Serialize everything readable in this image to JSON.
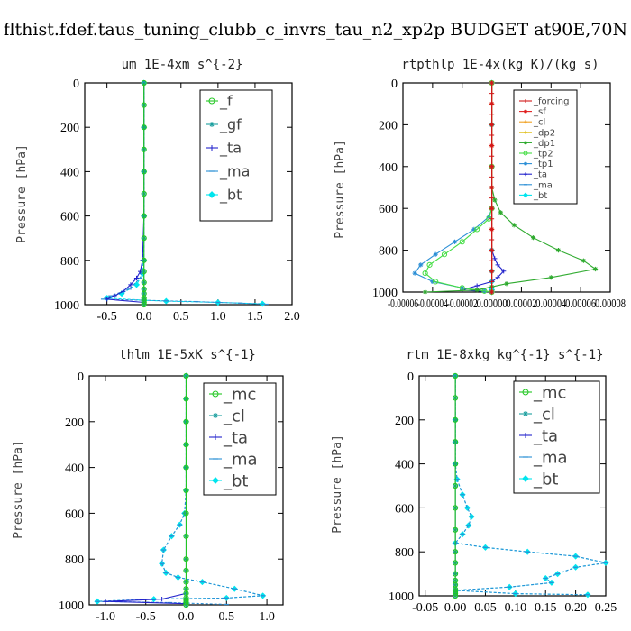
{
  "title": "flthist.fdef.taus_tuning_clubb_c_invrs_tau_n2_xp2p  BUDGET at90E,70N",
  "chart_data": [
    {
      "type": "line",
      "title": "um   1E-4xm s^{-2}",
      "ylabel": "Pressure [hPa]",
      "xlim": [
        -0.8,
        2.0
      ],
      "ylim": [
        1000,
        0
      ],
      "xticks": [
        "-0.5",
        "0.0",
        "0.5",
        "1.0",
        "1.5",
        "2.0"
      ],
      "xtick_values": [
        -0.5,
        0.0,
        0.5,
        1.0,
        1.5,
        2.0
      ],
      "yticks": [
        "0",
        "200",
        "400",
        "600",
        "800",
        "1000"
      ],
      "ytick_values": [
        0,
        200,
        400,
        600,
        800,
        1000
      ],
      "legend_position": "top-right",
      "series": [
        {
          "name": "_f",
          "color": "#22c722",
          "marker": "circle",
          "x": [
            0,
            0,
            0,
            0,
            0,
            0,
            0,
            0,
            0,
            0,
            0,
            0,
            0,
            0,
            0,
            0,
            0
          ],
          "y": [
            0,
            100,
            200,
            300,
            400,
            500,
            600,
            700,
            800,
            850,
            900,
            930,
            950,
            970,
            980,
            990,
            1000
          ]
        },
        {
          "name": "_gf",
          "color": "#1a9e9e",
          "marker": "star",
          "x": [
            0,
            0,
            0,
            0,
            0,
            0,
            0,
            0,
            0,
            0,
            0,
            0,
            0,
            0,
            0,
            0,
            0
          ],
          "y": [
            0,
            100,
            200,
            300,
            400,
            500,
            600,
            700,
            800,
            850,
            900,
            930,
            950,
            970,
            980,
            990,
            1000
          ]
        },
        {
          "name": "_ta",
          "color": "#2222cc",
          "marker": "plus",
          "x": [
            0,
            0,
            0,
            0,
            -0.02,
            -0.05,
            -0.1,
            -0.18,
            -0.28,
            -0.4,
            -0.5,
            0.0
          ],
          "y": [
            0,
            200,
            400,
            600,
            800,
            850,
            880,
            910,
            940,
            960,
            975,
            990
          ]
        },
        {
          "name": "_ma",
          "color": "#2b8fd6",
          "marker": "dash",
          "x": [
            0,
            0,
            0,
            0,
            -0.01,
            -0.05,
            -0.2,
            -0.45,
            -0.55,
            0.0,
            0.3,
            0.7,
            1.0,
            1.3,
            1.65
          ],
          "y": [
            0,
            200,
            400,
            600,
            800,
            880,
            930,
            960,
            975,
            980,
            983,
            986,
            990,
            993,
            998
          ]
        },
        {
          "name": "_bt",
          "color": "#00e5ee",
          "marker": "diamond",
          "x": [
            0,
            0,
            0,
            0,
            0,
            -0.02,
            -0.1,
            -0.3,
            -0.5,
            0.0,
            0.3,
            1.0,
            1.6
          ],
          "y": [
            0,
            200,
            400,
            600,
            800,
            860,
            910,
            950,
            970,
            980,
            984,
            990,
            996
          ]
        }
      ]
    },
    {
      "type": "line",
      "title": "rtpthlp   1E-4x(kg K)/(kg s)",
      "ylabel": "Pressure [hPa]",
      "xlim": [
        -6e-05,
        8e-05
      ],
      "ylim": [
        1000,
        0
      ],
      "xticks": [
        "-0.00006",
        "-0.00004",
        "-0.00002",
        "0.00000",
        "0.00002",
        "0.00004",
        "0.00006",
        "0.00008"
      ],
      "xtick_values": [
        -6e-05,
        -4e-05,
        -2e-05,
        0.0,
        2e-05,
        4e-05,
        6e-05,
        8e-05
      ],
      "yticks": [
        "0",
        "200",
        "400",
        "600",
        "800",
        "1000"
      ],
      "ytick_values": [
        0,
        200,
        400,
        600,
        800,
        1000
      ],
      "legend_position": "top-right",
      "series": [
        {
          "name": "_forcing",
          "color": "#d01818",
          "marker": "plus",
          "x": [
            0,
            0,
            0,
            0,
            0,
            0,
            0,
            0,
            0,
            0,
            0,
            0,
            0,
            0,
            0,
            0,
            0,
            0,
            0,
            0,
            0,
            0
          ],
          "y": [
            0,
            50,
            100,
            150,
            200,
            250,
            300,
            350,
            400,
            450,
            500,
            550,
            600,
            650,
            700,
            750,
            800,
            850,
            900,
            950,
            980,
            1000
          ]
        },
        {
          "name": "_sf",
          "color": "#e02020",
          "marker": "star",
          "x": [
            0,
            0,
            0,
            0,
            0,
            0,
            0,
            0,
            0,
            0,
            0
          ],
          "y": [
            0,
            100,
            200,
            300,
            400,
            500,
            600,
            700,
            800,
            900,
            1000
          ]
        },
        {
          "name": "_cl",
          "color": "#f0a020",
          "marker": "plus",
          "x": [
            0,
            0,
            0,
            0,
            0,
            0,
            0,
            0,
            0,
            0,
            0
          ],
          "y": [
            0,
            100,
            200,
            300,
            400,
            500,
            600,
            700,
            800,
            900,
            1000
          ]
        },
        {
          "name": "_dp2",
          "color": "#e0c020",
          "marker": "plus",
          "x": [
            0,
            0,
            0,
            0,
            0,
            0,
            0,
            0,
            0,
            0,
            0
          ],
          "y": [
            0,
            100,
            200,
            300,
            400,
            500,
            600,
            700,
            800,
            900,
            1000
          ]
        },
        {
          "name": "_dp1",
          "color": "#2eaa2e",
          "marker": "star",
          "x": [
            0,
            0,
            0,
            0,
            2e-06,
            6e-06,
            1.5e-05,
            2.8e-05,
            4.5e-05,
            6.2e-05,
            7e-05,
            4e-05,
            1e-05,
            0,
            -1e-05,
            -4.5e-05
          ],
          "y": [
            0,
            200,
            400,
            500,
            560,
            620,
            680,
            740,
            800,
            850,
            890,
            930,
            960,
            975,
            990,
            1000
          ]
        },
        {
          "name": "_tp2",
          "color": "#44dd44",
          "marker": "circle",
          "x": [
            0,
            0,
            0,
            -2e-06,
            -1e-05,
            -2e-05,
            -3.2e-05,
            -4.2e-05,
            -4.5e-05,
            -3.8e-05,
            -2e-05,
            -5e-06,
            0
          ],
          "y": [
            0,
            400,
            600,
            650,
            700,
            760,
            820,
            870,
            910,
            950,
            980,
            995,
            1000
          ]
        },
        {
          "name": "_tp1",
          "color": "#2b8fd6",
          "marker": "star",
          "x": [
            0,
            0,
            0,
            -2e-06,
            -1.2e-05,
            -2.5e-05,
            -3.8e-05,
            -4.8e-05,
            -5.2e-05,
            -4e-05,
            -2e-05,
            -5e-06,
            0
          ],
          "y": [
            0,
            400,
            600,
            640,
            700,
            760,
            820,
            870,
            910,
            950,
            980,
            995,
            1000
          ]
        },
        {
          "name": "_ta",
          "color": "#2222cc",
          "marker": "plus",
          "x": [
            0,
            0,
            0,
            2e-06,
            4e-06,
            8e-06,
            4e-06,
            0,
            -1e-05,
            -2e-05,
            0
          ],
          "y": [
            0,
            600,
            800,
            840,
            870,
            900,
            930,
            950,
            970,
            990,
            1000
          ]
        },
        {
          "name": "_ma",
          "color": "#2b8fd6",
          "marker": "dash",
          "x": [
            0,
            0,
            0,
            0,
            0,
            0,
            0,
            0,
            0,
            0
          ],
          "y": [
            0,
            200,
            400,
            600,
            800,
            900,
            950,
            980,
            990,
            1000
          ]
        },
        {
          "name": "_bt",
          "color": "#00e5ee",
          "marker": "diamond",
          "x": [
            0,
            0,
            0,
            0,
            0,
            0,
            0,
            0,
            0,
            0
          ],
          "y": [
            0,
            200,
            400,
            600,
            800,
            900,
            950,
            980,
            990,
            1000
          ]
        }
      ]
    },
    {
      "type": "line",
      "title": "thlm   1E-5xK s^{-1}",
      "ylabel": "Pressure [hPa]",
      "xlim": [
        -1.2,
        1.2
      ],
      "ylim": [
        1000,
        0
      ],
      "xticks": [
        "-1.0",
        "-0.5",
        "0.0",
        "0.5",
        "1.0"
      ],
      "xtick_values": [
        -1.0,
        -0.5,
        0.0,
        0.5,
        1.0
      ],
      "yticks": [
        "0",
        "200",
        "400",
        "600",
        "800",
        "1000"
      ],
      "ytick_values": [
        0,
        200,
        400,
        600,
        800,
        1000
      ],
      "legend_position": "top-right",
      "series": [
        {
          "name": "_mc",
          "color": "#22c722",
          "marker": "circle",
          "x": [
            0,
            0,
            0,
            0,
            0,
            0,
            0,
            0,
            0,
            0,
            0,
            0,
            0,
            0,
            0,
            0,
            0
          ],
          "y": [
            0,
            100,
            200,
            300,
            400,
            500,
            600,
            700,
            800,
            850,
            900,
            930,
            950,
            970,
            980,
            990,
            1000
          ]
        },
        {
          "name": "_cl",
          "color": "#1a9e9e",
          "marker": "star",
          "x": [
            0,
            0,
            0,
            0,
            0,
            0,
            0,
            0,
            0,
            0,
            0,
            0,
            0,
            0,
            0,
            0,
            0
          ],
          "y": [
            0,
            100,
            200,
            300,
            400,
            500,
            600,
            700,
            800,
            850,
            900,
            930,
            950,
            970,
            980,
            990,
            1000
          ]
        },
        {
          "name": "_ta",
          "color": "#2222cc",
          "marker": "plus",
          "x": [
            0,
            0,
            0,
            0,
            -0.3,
            -1.0,
            0.0
          ],
          "y": [
            0,
            400,
            800,
            950,
            975,
            985,
            995
          ]
        },
        {
          "name": "_ma",
          "color": "#2b8fd6",
          "marker": "dash",
          "x": [
            0,
            0,
            0,
            0,
            0,
            0,
            -0.02,
            -0.08,
            -0.18,
            -0.28,
            -0.3,
            -0.25,
            -0.1,
            0.2,
            0.6,
            0.95,
            0.5,
            -0.4,
            -1.1,
            -0.2,
            0.5
          ],
          "y": [
            0,
            100,
            200,
            300,
            400,
            500,
            600,
            650,
            700,
            760,
            820,
            860,
            880,
            900,
            930,
            960,
            970,
            975,
            985,
            990,
            998
          ]
        },
        {
          "name": "_bt",
          "color": "#00e5ee",
          "marker": "diamond",
          "x": [
            0,
            0,
            0,
            0,
            0,
            0,
            -0.02,
            -0.08,
            -0.18,
            -0.28,
            -0.3,
            -0.25,
            -0.1,
            0.2,
            0.6,
            0.95,
            0.5,
            -0.4,
            -1.1
          ],
          "y": [
            0,
            100,
            200,
            300,
            400,
            500,
            600,
            650,
            700,
            760,
            820,
            860,
            880,
            900,
            930,
            960,
            970,
            975,
            985
          ]
        }
      ]
    },
    {
      "type": "line",
      "title": "rtm   1E-8xkg kg^{-1} s^{-1}",
      "ylabel": "Pressure [hPa]",
      "xlim": [
        -0.06,
        0.25
      ],
      "ylim": [
        1000,
        0
      ],
      "xticks": [
        "-0.05",
        "0.00",
        "0.05",
        "0.10",
        "0.15",
        "0.20",
        "0.25"
      ],
      "xtick_values": [
        -0.05,
        0.0,
        0.05,
        0.1,
        0.15,
        0.2,
        0.25
      ],
      "yticks": [
        "0",
        "200",
        "400",
        "600",
        "800",
        "1000"
      ],
      "ytick_values": [
        0,
        200,
        400,
        600,
        800,
        1000
      ],
      "legend_position": "top-right",
      "series": [
        {
          "name": "_mc",
          "color": "#22c722",
          "marker": "circle",
          "x": [
            0,
            0,
            0,
            0,
            0,
            0,
            0,
            0,
            0,
            0,
            0,
            0,
            0,
            0,
            0,
            0,
            0
          ],
          "y": [
            0,
            100,
            200,
            300,
            400,
            500,
            600,
            700,
            800,
            850,
            900,
            930,
            950,
            970,
            980,
            990,
            1000
          ]
        },
        {
          "name": "_cl",
          "color": "#1a9e9e",
          "marker": "star",
          "x": [
            0,
            0,
            0,
            0,
            0,
            0,
            0,
            0,
            0,
            0,
            0,
            0,
            0,
            0,
            0,
            0,
            0
          ],
          "y": [
            0,
            100,
            200,
            300,
            400,
            500,
            600,
            700,
            800,
            850,
            900,
            930,
            950,
            970,
            980,
            990,
            1000
          ]
        },
        {
          "name": "_ta",
          "color": "#2222cc",
          "marker": "plus",
          "x": [
            0,
            0,
            0,
            0,
            0,
            0,
            0,
            0,
            0,
            0
          ],
          "y": [
            0,
            200,
            400,
            600,
            800,
            900,
            950,
            980,
            990,
            1000
          ]
        },
        {
          "name": "_ma",
          "color": "#2b8fd6",
          "marker": "dash",
          "x": [
            0,
            0,
            0,
            0,
            0.003,
            0.012,
            0.02,
            0.027,
            0.022,
            0.012,
            0.0,
            0.05,
            0.12,
            0.2,
            0.25,
            0.2,
            0.17,
            0.15,
            0.16,
            0.09,
            0.0,
            0.1,
            0.22
          ],
          "y": [
            0,
            200,
            300,
            400,
            470,
            540,
            600,
            640,
            680,
            720,
            760,
            780,
            800,
            820,
            850,
            870,
            900,
            920,
            940,
            960,
            975,
            990,
            995
          ]
        },
        {
          "name": "_bt",
          "color": "#00e5ee",
          "marker": "diamond",
          "x": [
            0,
            0,
            0,
            0,
            0.003,
            0.012,
            0.02,
            0.027,
            0.022,
            0.012,
            0.0,
            0.05,
            0.12,
            0.2,
            0.25,
            0.2,
            0.17,
            0.15,
            0.16,
            0.09,
            0.0,
            0.1,
            0.22
          ],
          "y": [
            0,
            200,
            300,
            400,
            470,
            540,
            600,
            640,
            680,
            720,
            760,
            780,
            800,
            820,
            850,
            870,
            900,
            920,
            940,
            960,
            975,
            990,
            995
          ]
        }
      ]
    }
  ]
}
